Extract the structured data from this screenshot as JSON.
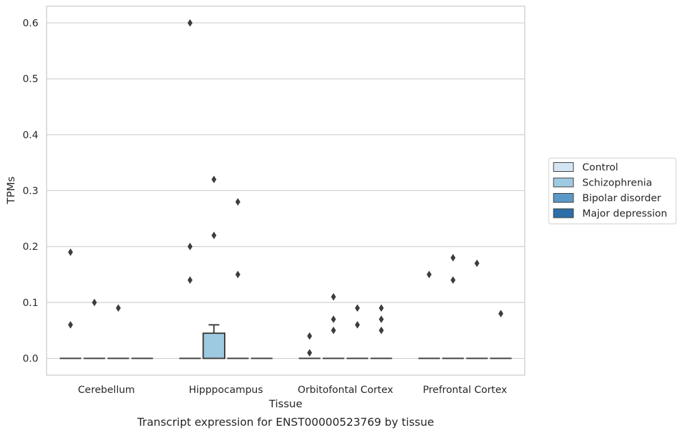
{
  "chart_data": {
    "type": "box",
    "title": "",
    "caption": "Transcript expression for ENST00000523769 by tissue",
    "xlabel": "Tissue",
    "ylabel": "TPMs",
    "ylim": [
      -0.03,
      0.63
    ],
    "yticks": [
      "0.0",
      "0.1",
      "0.2",
      "0.3",
      "0.4",
      "0.5",
      "0.6"
    ],
    "grid": "horizontal",
    "legend_position": "right",
    "categories": [
      "Cerebellum",
      "Hipppocampus",
      "Orbitofontal Cortex",
      "Prefrontal Cortex"
    ],
    "series": [
      {
        "name": "Control",
        "color": "#d3e4f3",
        "boxes": [
          {
            "q1": 0,
            "median": 0,
            "q3": 0,
            "whisker_low": 0,
            "whisker_high": 0,
            "outliers": [
              0.06,
              0.19
            ]
          },
          {
            "q1": 0,
            "median": 0,
            "q3": 0,
            "whisker_low": 0,
            "whisker_high": 0,
            "outliers": [
              0.14,
              0.2,
              0.6
            ]
          },
          {
            "q1": 0,
            "median": 0,
            "q3": 0,
            "whisker_low": 0,
            "whisker_high": 0,
            "outliers": [
              0.01,
              0.04
            ]
          },
          {
            "q1": 0,
            "median": 0,
            "q3": 0,
            "whisker_low": 0,
            "whisker_high": 0,
            "outliers": [
              0.15
            ]
          }
        ]
      },
      {
        "name": "Schizophrenia",
        "color": "#9ecae1",
        "boxes": [
          {
            "q1": 0,
            "median": 0,
            "q3": 0,
            "whisker_low": 0,
            "whisker_high": 0,
            "outliers": [
              0.1
            ]
          },
          {
            "q1": 0,
            "median": 0,
            "q3": 0.045,
            "whisker_low": 0,
            "whisker_high": 0.06,
            "outliers": [
              0.22,
              0.32
            ]
          },
          {
            "q1": 0,
            "median": 0,
            "q3": 0,
            "whisker_low": 0,
            "whisker_high": 0,
            "outliers": [
              0.05,
              0.07,
              0.11
            ]
          },
          {
            "q1": 0,
            "median": 0,
            "q3": 0,
            "whisker_low": 0,
            "whisker_high": 0,
            "outliers": [
              0.14,
              0.18
            ]
          }
        ]
      },
      {
        "name": "Bipolar disorder",
        "color": "#5a9ac9",
        "boxes": [
          {
            "q1": 0,
            "median": 0,
            "q3": 0,
            "whisker_low": 0,
            "whisker_high": 0,
            "outliers": [
              0.09
            ]
          },
          {
            "q1": 0,
            "median": 0,
            "q3": 0,
            "whisker_low": 0,
            "whisker_high": 0,
            "outliers": [
              0.15,
              0.28
            ]
          },
          {
            "q1": 0,
            "median": 0,
            "q3": 0,
            "whisker_low": 0,
            "whisker_high": 0,
            "outliers": [
              0.06,
              0.09
            ]
          },
          {
            "q1": 0,
            "median": 0,
            "q3": 0,
            "whisker_low": 0,
            "whisker_high": 0,
            "outliers": [
              0.17
            ]
          }
        ]
      },
      {
        "name": "Major depression",
        "color": "#2c6ea8",
        "boxes": [
          {
            "q1": 0,
            "median": 0,
            "q3": 0,
            "whisker_low": 0,
            "whisker_high": 0,
            "outliers": []
          },
          {
            "q1": 0,
            "median": 0,
            "q3": 0,
            "whisker_low": 0,
            "whisker_high": 0,
            "outliers": []
          },
          {
            "q1": 0,
            "median": 0,
            "q3": 0,
            "whisker_low": 0,
            "whisker_high": 0,
            "outliers": [
              0.05,
              0.07,
              0.09
            ]
          },
          {
            "q1": 0,
            "median": 0,
            "q3": 0,
            "whisker_low": 0,
            "whisker_high": 0,
            "outliers": [
              0.08
            ]
          }
        ]
      }
    ]
  }
}
